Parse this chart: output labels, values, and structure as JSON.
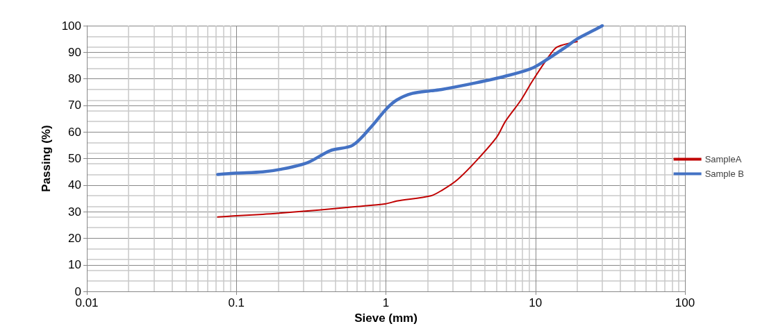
{
  "chart_data": {
    "type": "line",
    "xlabel": "Sieve (mm)",
    "ylabel": "Passing (%)",
    "log": "x",
    "grid": true,
    "legend": "right",
    "marker": "none",
    "line_style": "solid",
    "xlim": [
      0.01,
      100
    ],
    "xticks": [
      0.01,
      0.1,
      1,
      10,
      100
    ],
    "ylim": [
      0,
      100
    ],
    "yticks": [
      0,
      10,
      20,
      30,
      40,
      50,
      60,
      70,
      80,
      90,
      100
    ],
    "series": [
      {
        "name": "SampleA",
        "color": "#c00000",
        "x": [
          0.075,
          0.1,
          0.15,
          0.2,
          0.3,
          0.425,
          0.6,
          1,
          1.18,
          2,
          2.36,
          3,
          4,
          5.5,
          6.3,
          8,
          9.5,
          12.5,
          14,
          19
        ],
        "values": [
          28,
          28.5,
          29,
          29.5,
          30.3,
          31,
          31.8,
          33,
          34,
          36,
          38,
          42,
          49,
          58,
          64,
          72,
          79,
          89,
          92,
          94
        ]
      },
      {
        "name": "Sample B",
        "color": "#4472c4",
        "x": [
          0.075,
          0.1,
          0.15,
          0.2,
          0.3,
          0.425,
          0.6,
          0.8,
          1,
          1.18,
          1.5,
          2,
          2.36,
          4,
          6.3,
          9.5,
          12.5,
          16,
          19,
          25,
          28
        ],
        "values": [
          44,
          44.5,
          45,
          46,
          48.5,
          53,
          55,
          62,
          68.5,
          72,
          74.5,
          75.5,
          76,
          78.5,
          81,
          84,
          88,
          92,
          95,
          98.5,
          100
        ]
      }
    ]
  }
}
